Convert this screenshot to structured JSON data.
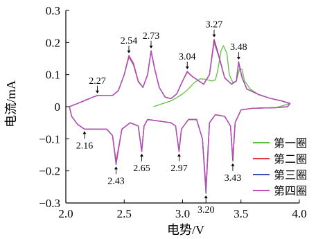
{
  "chart_data": {
    "type": "line",
    "xlabel": "电势/V",
    "ylabel": "电流/mA",
    "xlim": [
      2.0,
      4.0
    ],
    "ylim": [
      -0.3,
      0.3
    ],
    "xticks": [
      "2.0",
      "2.5",
      "3.0",
      "3.5",
      "4.0"
    ],
    "yticks": [
      "−0.3",
      "−0.2",
      "−0.1",
      "0",
      "0.1",
      "0.2",
      "0.3"
    ],
    "grid": false,
    "legend_position": "bottom-right",
    "series": [
      {
        "name": "第一圈",
        "color": "#5bbf3a",
        "points": [
          [
            2.75,
            0.0
          ],
          [
            2.8,
            0.006
          ],
          [
            2.85,
            0.012
          ],
          [
            2.9,
            0.018
          ],
          [
            2.95,
            0.028
          ],
          [
            3.0,
            0.04
          ],
          [
            3.05,
            0.055
          ],
          [
            3.1,
            0.075
          ],
          [
            3.15,
            0.087
          ],
          [
            3.2,
            0.085
          ],
          [
            3.25,
            0.08
          ],
          [
            3.28,
            0.083
          ],
          [
            3.3,
            0.11
          ],
          [
            3.33,
            0.175
          ],
          [
            3.35,
            0.19
          ],
          [
            3.38,
            0.165
          ],
          [
            3.4,
            0.1
          ],
          [
            3.43,
            0.075
          ],
          [
            3.46,
            0.08
          ],
          [
            3.49,
            0.12
          ],
          [
            3.51,
            0.115
          ],
          [
            3.53,
            0.08
          ],
          [
            3.58,
            0.055
          ],
          [
            3.65,
            0.038
          ],
          [
            3.75,
            0.026
          ],
          [
            3.85,
            0.018
          ],
          [
            3.92,
            0.01
          ],
          [
            3.8,
            -0.003
          ],
          [
            3.6,
            -0.005
          ]
        ]
      },
      {
        "name": "第二圈",
        "color": "#e0393e",
        "points": [
          [
            2.03,
            0.0
          ],
          [
            2.1,
            0.01
          ],
          [
            2.18,
            0.022
          ],
          [
            2.22,
            0.028
          ],
          [
            2.27,
            0.035
          ],
          [
            2.32,
            0.035
          ],
          [
            2.4,
            0.035
          ],
          [
            2.45,
            0.05
          ],
          [
            2.5,
            0.1
          ],
          [
            2.54,
            0.16
          ],
          [
            2.58,
            0.135
          ],
          [
            2.62,
            0.08
          ],
          [
            2.66,
            0.06
          ],
          [
            2.7,
            0.1
          ],
          [
            2.73,
            0.175
          ],
          [
            2.76,
            0.12
          ],
          [
            2.8,
            0.06
          ],
          [
            2.85,
            0.03
          ],
          [
            2.9,
            0.025
          ],
          [
            2.95,
            0.04
          ],
          [
            3.0,
            0.08
          ],
          [
            3.04,
            0.11
          ],
          [
            3.08,
            0.095
          ],
          [
            3.12,
            0.085
          ],
          [
            3.18,
            0.07
          ],
          [
            3.23,
            0.1
          ],
          [
            3.27,
            0.21
          ],
          [
            3.31,
            0.16
          ],
          [
            3.36,
            0.09
          ],
          [
            3.42,
            0.07
          ],
          [
            3.46,
            0.08
          ],
          [
            3.48,
            0.14
          ],
          [
            3.51,
            0.09
          ],
          [
            3.55,
            0.055
          ],
          [
            3.65,
            0.038
          ],
          [
            3.75,
            0.026
          ],
          [
            3.85,
            0.018
          ],
          [
            3.92,
            0.01
          ],
          [
            3.9,
            0.0
          ],
          [
            3.8,
            -0.003
          ],
          [
            3.6,
            -0.005
          ],
          [
            3.5,
            -0.01
          ],
          [
            3.45,
            -0.05
          ],
          [
            3.43,
            -0.17
          ],
          [
            3.41,
            -0.06
          ],
          [
            3.36,
            -0.03
          ],
          [
            3.28,
            -0.025
          ],
          [
            3.23,
            -0.05
          ],
          [
            3.2,
            -0.25
          ],
          [
            3.17,
            -0.1
          ],
          [
            3.12,
            -0.04
          ],
          [
            3.05,
            -0.04
          ],
          [
            2.99,
            -0.07
          ],
          [
            2.97,
            -0.14
          ],
          [
            2.94,
            -0.06
          ],
          [
            2.9,
            -0.05
          ],
          [
            2.8,
            -0.045
          ],
          [
            2.7,
            -0.04
          ],
          [
            2.67,
            -0.06
          ],
          [
            2.65,
            -0.14
          ],
          [
            2.62,
            -0.06
          ],
          [
            2.55,
            -0.05
          ],
          [
            2.48,
            -0.07
          ],
          [
            2.43,
            -0.17
          ],
          [
            2.4,
            -0.09
          ],
          [
            2.35,
            -0.07
          ],
          [
            2.25,
            -0.07
          ],
          [
            2.16,
            -0.07
          ],
          [
            2.1,
            -0.055
          ],
          [
            2.05,
            -0.03
          ],
          [
            2.03,
            0.0
          ]
        ]
      },
      {
        "name": "第三圈",
        "color": "#3a4cb4",
        "points": [
          [
            2.03,
            0.0
          ],
          [
            2.1,
            0.01
          ],
          [
            2.18,
            0.022
          ],
          [
            2.22,
            0.028
          ],
          [
            2.27,
            0.035
          ],
          [
            2.32,
            0.035
          ],
          [
            2.4,
            0.035
          ],
          [
            2.45,
            0.05
          ],
          [
            2.5,
            0.1
          ],
          [
            2.54,
            0.155
          ],
          [
            2.58,
            0.13
          ],
          [
            2.62,
            0.078
          ],
          [
            2.66,
            0.06
          ],
          [
            2.7,
            0.1
          ],
          [
            2.73,
            0.172
          ],
          [
            2.76,
            0.118
          ],
          [
            2.8,
            0.06
          ],
          [
            2.85,
            0.03
          ],
          [
            2.9,
            0.025
          ],
          [
            2.95,
            0.04
          ],
          [
            3.0,
            0.08
          ],
          [
            3.04,
            0.108
          ],
          [
            3.08,
            0.095
          ],
          [
            3.12,
            0.085
          ],
          [
            3.18,
            0.07
          ],
          [
            3.23,
            0.1
          ],
          [
            3.27,
            0.205
          ],
          [
            3.31,
            0.158
          ],
          [
            3.36,
            0.09
          ],
          [
            3.42,
            0.07
          ],
          [
            3.46,
            0.08
          ],
          [
            3.48,
            0.138
          ],
          [
            3.51,
            0.09
          ],
          [
            3.55,
            0.055
          ],
          [
            3.65,
            0.038
          ],
          [
            3.75,
            0.026
          ],
          [
            3.85,
            0.018
          ],
          [
            3.92,
            0.01
          ],
          [
            3.9,
            0.0
          ],
          [
            3.8,
            -0.003
          ],
          [
            3.6,
            -0.005
          ],
          [
            3.5,
            -0.01
          ],
          [
            3.45,
            -0.05
          ],
          [
            3.43,
            -0.165
          ],
          [
            3.41,
            -0.06
          ],
          [
            3.36,
            -0.03
          ],
          [
            3.28,
            -0.025
          ],
          [
            3.23,
            -0.05
          ],
          [
            3.2,
            -0.27
          ],
          [
            3.17,
            -0.1
          ],
          [
            3.12,
            -0.04
          ],
          [
            3.05,
            -0.04
          ],
          [
            2.99,
            -0.07
          ],
          [
            2.97,
            -0.138
          ],
          [
            2.94,
            -0.06
          ],
          [
            2.9,
            -0.05
          ],
          [
            2.8,
            -0.045
          ],
          [
            2.7,
            -0.04
          ],
          [
            2.67,
            -0.06
          ],
          [
            2.65,
            -0.138
          ],
          [
            2.62,
            -0.06
          ],
          [
            2.55,
            -0.05
          ],
          [
            2.48,
            -0.07
          ],
          [
            2.43,
            -0.18
          ],
          [
            2.4,
            -0.09
          ],
          [
            2.35,
            -0.07
          ],
          [
            2.25,
            -0.07
          ],
          [
            2.16,
            -0.07
          ],
          [
            2.1,
            -0.055
          ],
          [
            2.05,
            -0.03
          ],
          [
            2.03,
            0.0
          ]
        ]
      },
      {
        "name": "第四圈",
        "color": "#c04fb8",
        "points": [
          [
            2.03,
            0.0
          ],
          [
            2.1,
            0.01
          ],
          [
            2.18,
            0.022
          ],
          [
            2.22,
            0.028
          ],
          [
            2.27,
            0.035
          ],
          [
            2.32,
            0.035
          ],
          [
            2.4,
            0.035
          ],
          [
            2.45,
            0.05
          ],
          [
            2.5,
            0.1
          ],
          [
            2.54,
            0.158
          ],
          [
            2.58,
            0.132
          ],
          [
            2.62,
            0.079
          ],
          [
            2.66,
            0.06
          ],
          [
            2.7,
            0.1
          ],
          [
            2.73,
            0.173
          ],
          [
            2.76,
            0.119
          ],
          [
            2.8,
            0.06
          ],
          [
            2.85,
            0.03
          ],
          [
            2.9,
            0.025
          ],
          [
            2.95,
            0.04
          ],
          [
            3.0,
            0.08
          ],
          [
            3.04,
            0.109
          ],
          [
            3.08,
            0.095
          ],
          [
            3.12,
            0.085
          ],
          [
            3.18,
            0.07
          ],
          [
            3.23,
            0.1
          ],
          [
            3.27,
            0.2
          ],
          [
            3.31,
            0.156
          ],
          [
            3.36,
            0.09
          ],
          [
            3.42,
            0.07
          ],
          [
            3.46,
            0.08
          ],
          [
            3.48,
            0.135
          ],
          [
            3.51,
            0.09
          ],
          [
            3.55,
            0.055
          ],
          [
            3.65,
            0.038
          ],
          [
            3.75,
            0.026
          ],
          [
            3.85,
            0.018
          ],
          [
            3.92,
            0.01
          ],
          [
            3.9,
            0.0
          ],
          [
            3.8,
            -0.003
          ],
          [
            3.6,
            -0.005
          ],
          [
            3.5,
            -0.01
          ],
          [
            3.45,
            -0.05
          ],
          [
            3.43,
            -0.16
          ],
          [
            3.41,
            -0.06
          ],
          [
            3.36,
            -0.03
          ],
          [
            3.28,
            -0.025
          ],
          [
            3.23,
            -0.05
          ],
          [
            3.2,
            -0.26
          ],
          [
            3.17,
            -0.1
          ],
          [
            3.12,
            -0.04
          ],
          [
            3.05,
            -0.04
          ],
          [
            2.99,
            -0.07
          ],
          [
            2.97,
            -0.14
          ],
          [
            2.94,
            -0.06
          ],
          [
            2.9,
            -0.05
          ],
          [
            2.8,
            -0.045
          ],
          [
            2.7,
            -0.04
          ],
          [
            2.67,
            -0.06
          ],
          [
            2.65,
            -0.14
          ],
          [
            2.62,
            -0.06
          ],
          [
            2.55,
            -0.05
          ],
          [
            2.48,
            -0.07
          ],
          [
            2.43,
            -0.175
          ],
          [
            2.4,
            -0.09
          ],
          [
            2.35,
            -0.07
          ],
          [
            2.25,
            -0.07
          ],
          [
            2.16,
            -0.07
          ],
          [
            2.1,
            -0.055
          ],
          [
            2.05,
            -0.03
          ],
          [
            2.03,
            0.0
          ]
        ]
      }
    ],
    "annotations": [
      {
        "text": "2.27",
        "x": 2.27,
        "y": 0.035,
        "side": "above"
      },
      {
        "text": "2.54",
        "x": 2.54,
        "y": 0.16,
        "side": "above"
      },
      {
        "text": "2.73",
        "x": 2.73,
        "y": 0.175,
        "side": "above"
      },
      {
        "text": "3.04",
        "x": 3.04,
        "y": 0.11,
        "side": "above"
      },
      {
        "text": "3.27",
        "x": 3.27,
        "y": 0.21,
        "side": "above"
      },
      {
        "text": "3.48",
        "x": 3.48,
        "y": 0.14,
        "side": "above"
      },
      {
        "text": "2.16",
        "x": 2.16,
        "y": -0.07,
        "side": "below"
      },
      {
        "text": "2.43",
        "x": 2.43,
        "y": -0.18,
        "side": "below"
      },
      {
        "text": "2.65",
        "x": 2.65,
        "y": -0.14,
        "side": "below"
      },
      {
        "text": "2.97",
        "x": 2.97,
        "y": -0.14,
        "side": "below"
      },
      {
        "text": "3.20",
        "x": 3.2,
        "y": -0.27,
        "side": "below"
      },
      {
        "text": "3.43",
        "x": 3.43,
        "y": -0.17,
        "side": "below"
      }
    ]
  }
}
